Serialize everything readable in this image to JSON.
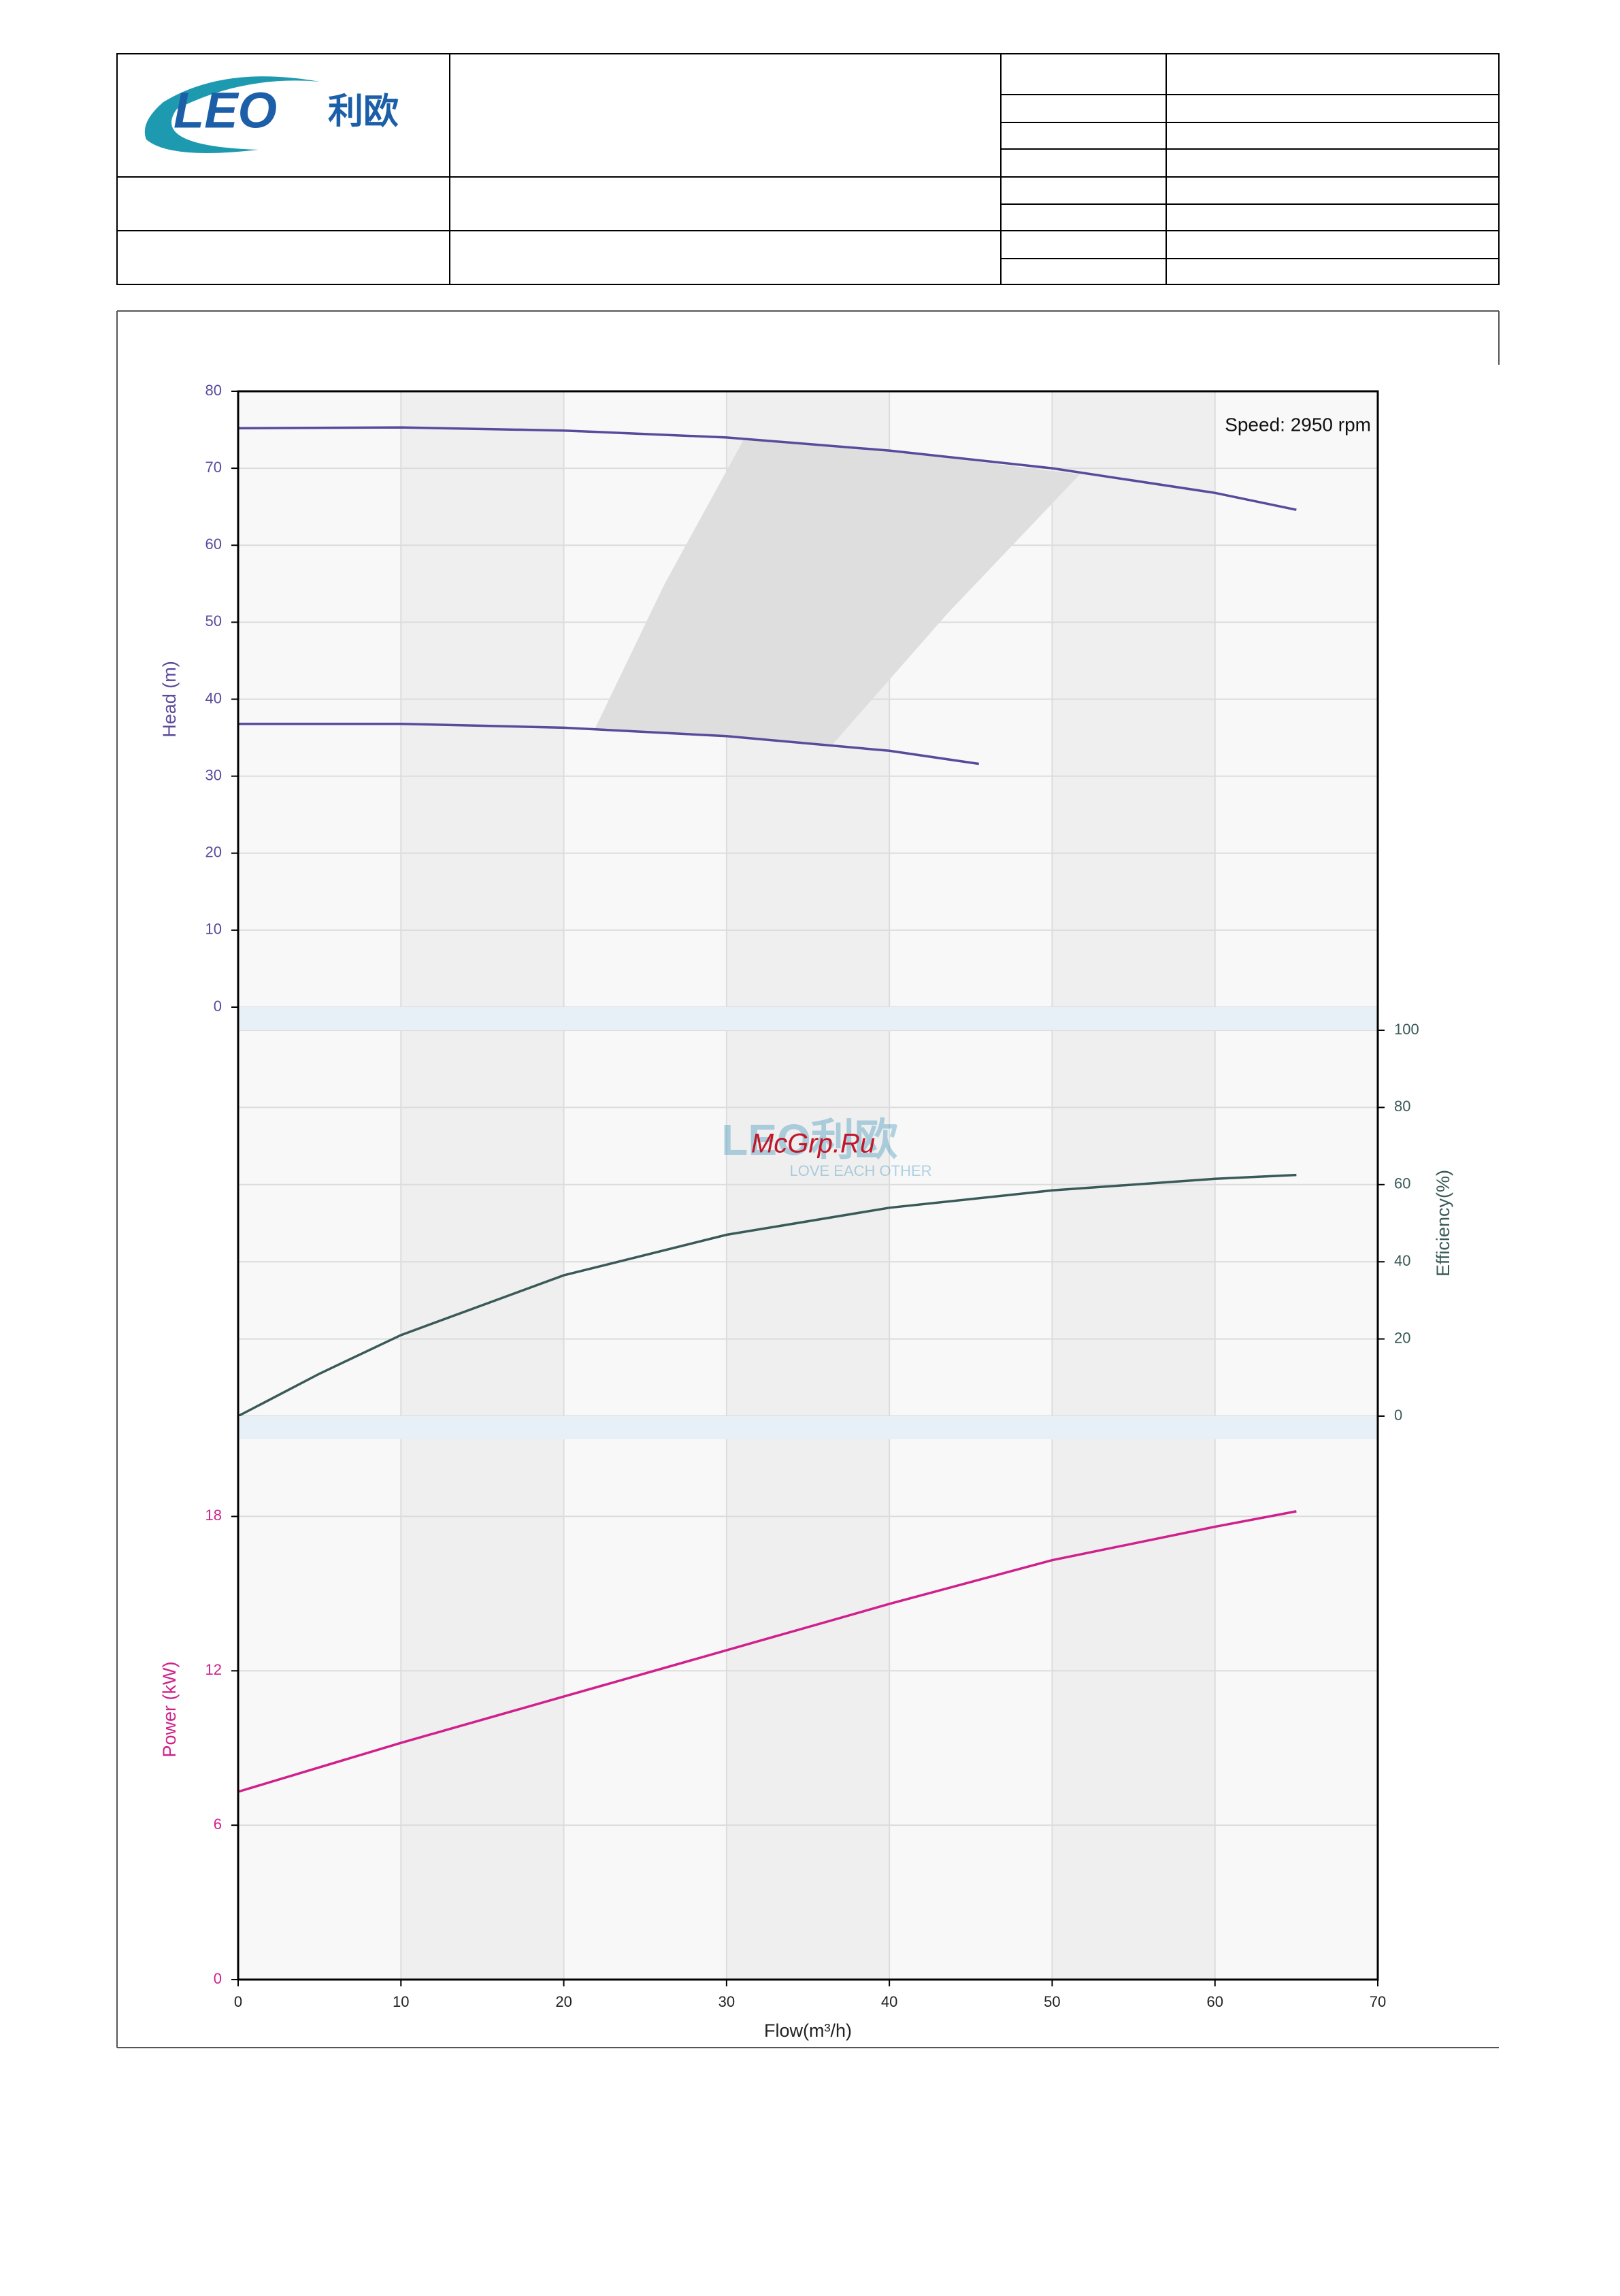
{
  "header": {
    "logo": {
      "brand": "LEO",
      "name": "利欧"
    }
  },
  "watermark": {
    "logo": "LEO利欧",
    "slogan": "LOVE EACH OTHER",
    "site": "McGrp.Ru"
  },
  "chart_data": [
    {
      "type": "line",
      "ylabel": "Head (m)",
      "annotation": "Speed: 2950 rpm",
      "xlim": [
        0,
        70
      ],
      "ylim": [
        0,
        80
      ],
      "yticks": [
        0,
        10,
        20,
        30,
        40,
        50,
        60,
        70,
        80
      ],
      "yaxis_side": "left",
      "color": "#5a4a9c",
      "grid": true,
      "region": {
        "color": "#dedede",
        "x": [
          21.9,
          26.2,
          31.1,
          40,
          51.7,
          43.6,
          36.5,
          30,
          21.9
        ],
        "values": [
          36.1,
          55,
          73.9,
          72.3,
          69.2,
          51.2,
          34.1,
          35.2,
          36.1
        ]
      },
      "series": [
        {
          "color": "#5a4a9c",
          "x": [
            0,
            10,
            20,
            30,
            40,
            50,
            60,
            65
          ],
          "values": [
            75.2,
            75.3,
            74.9,
            74.0,
            72.3,
            70.0,
            66.8,
            64.6
          ]
        },
        {
          "color": "#5a4a9c",
          "x": [
            0,
            10,
            20,
            30,
            40,
            45.5
          ],
          "values": [
            36.8,
            36.8,
            36.3,
            35.2,
            33.3,
            31.6
          ]
        }
      ]
    },
    {
      "type": "line",
      "ylabel": "Efficiency(%)",
      "xlim": [
        0,
        70
      ],
      "ylim": [
        0,
        100
      ],
      "yticks": [
        0,
        20,
        40,
        60,
        80,
        100
      ],
      "yaxis_side": "right",
      "color": "#3a5a58",
      "grid": true,
      "series": [
        {
          "color": "#3a5a58",
          "x": [
            0,
            5,
            10,
            20,
            30,
            40,
            50,
            60,
            65
          ],
          "values": [
            0,
            11,
            21,
            36.5,
            47,
            54,
            58.5,
            61.5,
            62.5
          ]
        }
      ]
    },
    {
      "type": "line",
      "ylabel": "Power (kW)",
      "xlabel": "Flow(m³/h)",
      "xlim": [
        0,
        70
      ],
      "ylim": [
        0,
        21
      ],
      "xticks": [
        0,
        10,
        20,
        30,
        40,
        50,
        60,
        70
      ],
      "yticks": [
        0,
        6,
        12,
        18
      ],
      "yaxis_side": "left",
      "color": "#d0208c",
      "grid": true,
      "series": [
        {
          "color": "#d0208c",
          "x": [
            0,
            10,
            20,
            30,
            40,
            50,
            60,
            65
          ],
          "values": [
            7.3,
            9.2,
            11.0,
            12.8,
            14.6,
            16.3,
            17.6,
            18.2
          ]
        }
      ]
    }
  ]
}
